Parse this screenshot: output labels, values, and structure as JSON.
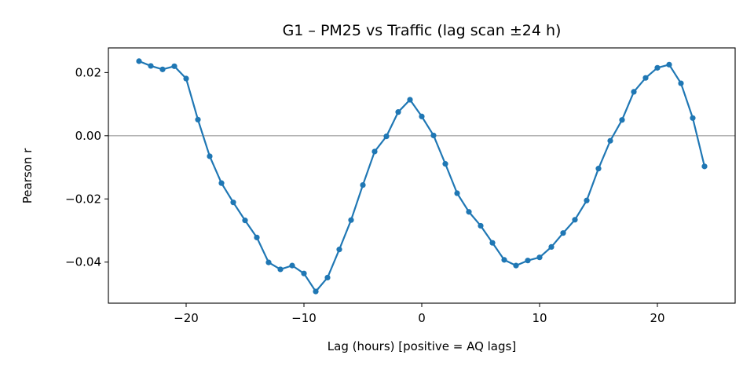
{
  "chart_data": {
    "type": "line",
    "title": "G1 – PM25 vs Traffic (lag scan ±24 h)",
    "xlabel": "Lag (hours)  [positive = AQ lags]",
    "ylabel": "Pearson r",
    "xlim": [
      -26.6,
      26.6
    ],
    "ylim": [
      -0.053,
      0.0278
    ],
    "xticks": [
      -20,
      -10,
      0,
      10,
      20
    ],
    "xtick_labels": [
      "−20",
      "−10",
      "0",
      "10",
      "20"
    ],
    "yticks": [
      0.02,
      0.0,
      -0.02,
      -0.04
    ],
    "ytick_labels": [
      "0.02",
      "0.00",
      "−0.02",
      "−0.04"
    ],
    "reference_line": {
      "y": 0.0,
      "color": "#aaaaaa"
    },
    "grid": false,
    "series": [
      {
        "color": "#1f77b4",
        "x": [
          -24,
          -23,
          -22,
          -21,
          -20,
          -19,
          -18,
          -17,
          -16,
          -15,
          -14,
          -13,
          -12,
          -11,
          -10,
          -9,
          -8,
          -7,
          -6,
          -5,
          -4,
          -3,
          -2,
          -1,
          0,
          1,
          2,
          3,
          4,
          5,
          6,
          7,
          8,
          9,
          10,
          11,
          12,
          13,
          14,
          15,
          16,
          17,
          18,
          19,
          20,
          21,
          22,
          23,
          24
        ],
        "y": [
          0.0236,
          0.0221,
          0.021,
          0.022,
          0.0181,
          0.0051,
          -0.0065,
          -0.015,
          -0.0211,
          -0.0268,
          -0.0322,
          -0.0401,
          -0.0423,
          -0.0411,
          -0.0436,
          -0.0493,
          -0.0449,
          -0.036,
          -0.0267,
          -0.0156,
          -0.005,
          -0.0002,
          0.0075,
          0.0114,
          0.0061,
          0.0001,
          -0.0089,
          -0.0182,
          -0.0241,
          -0.0285,
          -0.0339,
          -0.0393,
          -0.0411,
          -0.0395,
          -0.0385,
          -0.0352,
          -0.0308,
          -0.0266,
          -0.0205,
          -0.0104,
          -0.0016,
          0.005,
          0.0139,
          0.0183,
          0.0215,
          0.0225,
          0.0166,
          0.0056,
          -0.0097
        ]
      }
    ]
  }
}
